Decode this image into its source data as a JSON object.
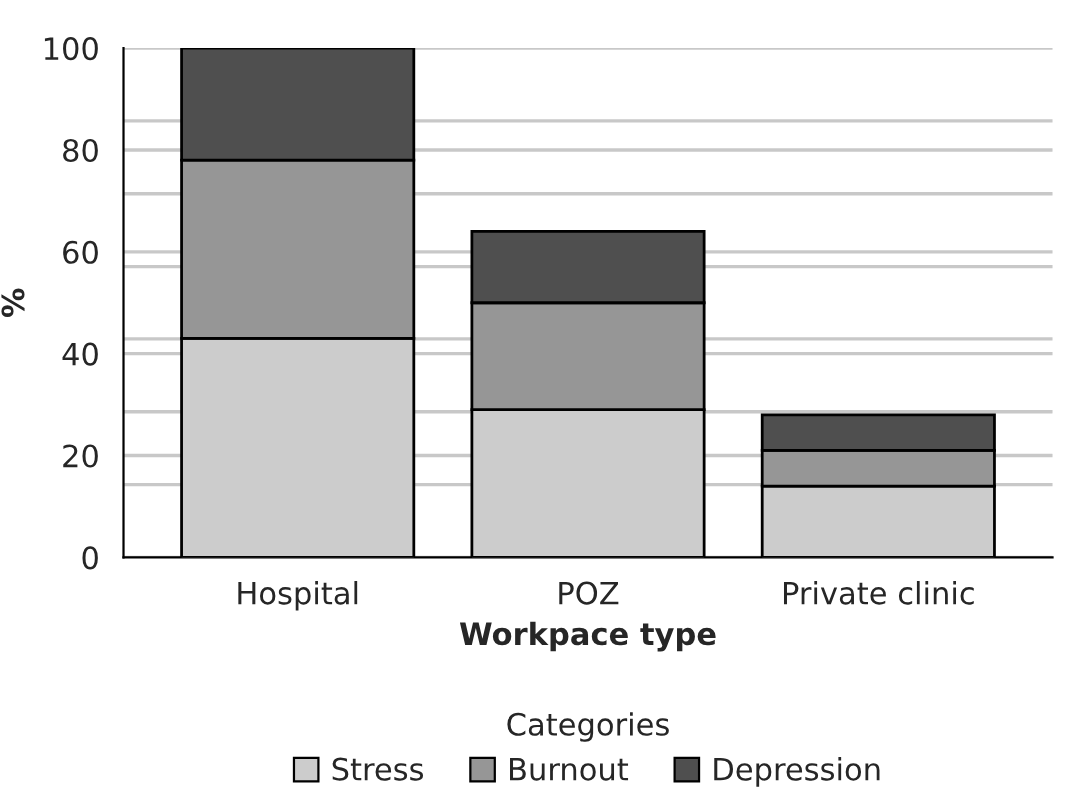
{
  "chart_data": {
    "type": "bar",
    "stacked": true,
    "xlabel": "Workpace type",
    "ylabel": "%",
    "legend_title": "Categories",
    "legend": "bottom",
    "categories": [
      "Hospital",
      "POZ",
      "Private clinic"
    ],
    "series": [
      {
        "name": "Stress",
        "color": "#cccccc",
        "values": [
          43,
          29,
          14
        ]
      },
      {
        "name": "Burnout",
        "color": "#969696",
        "values": [
          35,
          21,
          7
        ]
      },
      {
        "name": "Depression",
        "color": "#4f4f4f",
        "values": [
          22,
          14,
          7
        ]
      }
    ],
    "ylim": [
      0,
      100
    ],
    "yticks": [
      0,
      20,
      40,
      60,
      80,
      100,
      {
        "value": 14.3,
        "label": null
      },
      {
        "value": 28.6,
        "label": null
      },
      {
        "value": 42.9,
        "label": null
      },
      {
        "value": 57.1,
        "label": null
      },
      {
        "value": 71.4,
        "label": null
      },
      {
        "value": 85.7,
        "label": null
      }
    ],
    "grid": "y"
  }
}
